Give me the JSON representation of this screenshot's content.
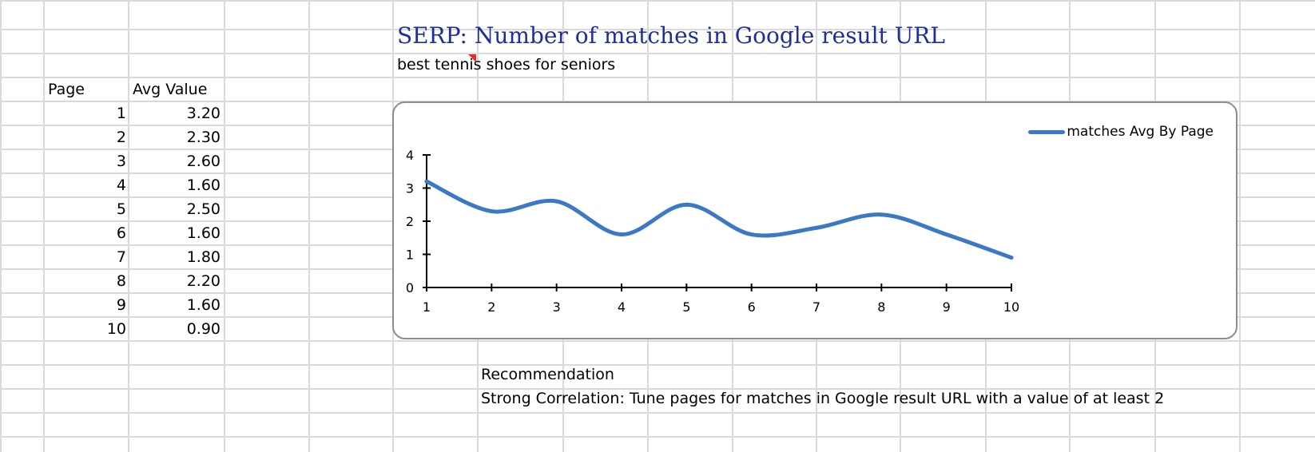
{
  "sheet": {
    "header": {
      "page": "Page",
      "avg": "Avg Value"
    },
    "rows": [
      {
        "page": "1",
        "avg": "3.20"
      },
      {
        "page": "2",
        "avg": "2.30"
      },
      {
        "page": "3",
        "avg": "2.60"
      },
      {
        "page": "4",
        "avg": "1.60"
      },
      {
        "page": "5",
        "avg": "2.50"
      },
      {
        "page": "6",
        "avg": "1.60"
      },
      {
        "page": "7",
        "avg": "1.80"
      },
      {
        "page": "8",
        "avg": "2.20"
      },
      {
        "page": "9",
        "avg": "1.60"
      },
      {
        "page": "10",
        "avg": "0.90"
      }
    ],
    "title": "SERP: Number of matches in Google result URL",
    "subtitle": "best tennis shoes for seniors",
    "recommendation_label": "Recommendation",
    "recommendation_text": "Strong Correlation: Tune pages for matches in Google result URL with a value of at least 2"
  },
  "chart_data": {
    "type": "line",
    "x": [
      1,
      2,
      3,
      4,
      5,
      6,
      7,
      8,
      9,
      10
    ],
    "series": [
      {
        "name": "matches Avg By Page",
        "values": [
          3.2,
          2.3,
          2.6,
          1.6,
          2.5,
          1.6,
          1.8,
          2.2,
          1.6,
          0.9
        ]
      }
    ],
    "x_ticks": [
      "1",
      "2",
      "3",
      "4",
      "5",
      "6",
      "7",
      "8",
      "9",
      "10"
    ],
    "y_ticks": [
      "0",
      "1",
      "2",
      "3",
      "4"
    ],
    "ylim": [
      0,
      4
    ],
    "xlim": [
      1,
      10
    ],
    "legend_position": "top-right",
    "grid": false,
    "smooth": true,
    "colors": {
      "line": "#3b78c5",
      "title": "#1f2f99",
      "comment": "#e52b2b"
    }
  }
}
